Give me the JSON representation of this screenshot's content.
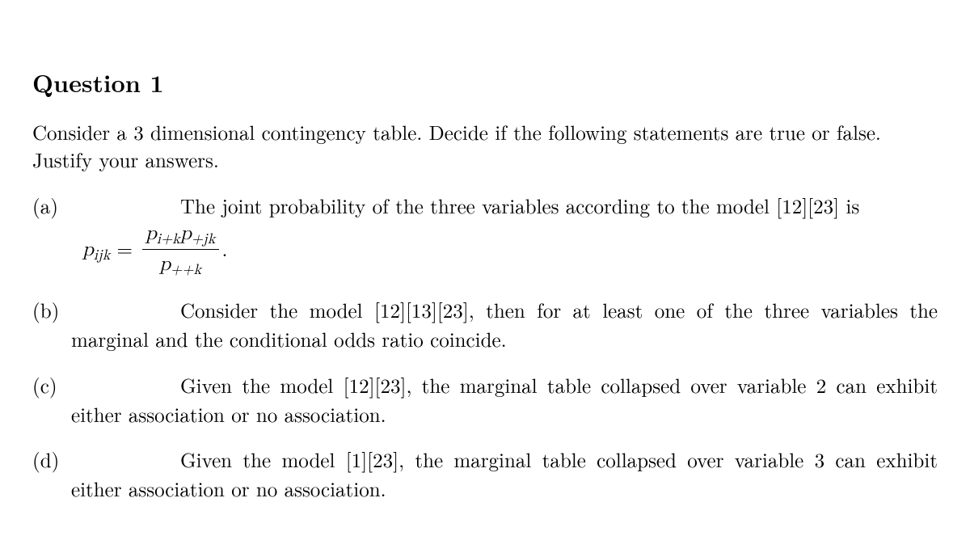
{
  "title": "Question 1",
  "intro": "Consider a 3 dimensional contingency table.  Decide if the following statements are true or false.  Justify your answers.",
  "items": {
    "a": {
      "label": "(a)",
      "text_before": "The joint probability of the three variables according to the model [12][23] is",
      "eq_lhs_var": "p",
      "eq_lhs_sub": "ijk",
      "eq_sign": "=",
      "num_var1": "p",
      "num_sub1": "i+k",
      "num_var2": "p",
      "num_sub2": "+jk",
      "den_var": "p",
      "den_sub": "++k",
      "period": "."
    },
    "b": {
      "label": "(b)",
      "text": "Consider the model [12][13][23], then for at least one of the three variables the marginal and the conditional odds ratio coincide."
    },
    "c": {
      "label": "(c)",
      "text": "Given the model [12][23], the marginal table collapsed over variable 2 can exhibit either association or no association."
    },
    "d": {
      "label": "(d)",
      "text": "Given the model [1][23], the marginal table collapsed over variable 3 can exhibit either association or no association."
    }
  },
  "style": {
    "background": "#ffffff",
    "text_color": "#000000",
    "title_fontsize": 30,
    "body_fontsize": 25,
    "font_family": "Computer Modern / Latin Modern serif"
  }
}
